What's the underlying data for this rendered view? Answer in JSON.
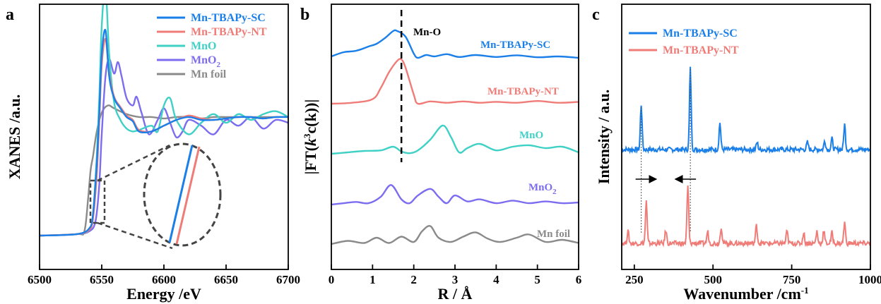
{
  "chart_data": [
    {
      "panel": "a",
      "type": "line",
      "xlabel": "Energy /eV",
      "ylabel": "XANES /a.u.",
      "xlim": [
        6500,
        6700
      ],
      "x_ticks": [
        6500,
        6550,
        6600,
        6650,
        6700
      ],
      "legend_position": "top-right",
      "inset": "zoom ellipse on edge region ~6540-6548 eV",
      "series": [
        {
          "name": "Mn-TBAPy-SC",
          "color": "#1a7fe8",
          "x": [
            6500,
            6530,
            6540,
            6543,
            6546,
            6548,
            6550,
            6553,
            6556,
            6560,
            6565,
            6570,
            6575,
            6580,
            6590,
            6600,
            6610,
            6620,
            6630,
            6640,
            6650,
            6660,
            6670,
            6680,
            6690,
            6700
          ],
          "y": [
            0.0,
            0.01,
            0.05,
            0.15,
            0.5,
            0.85,
            1.25,
            1.42,
            1.1,
            0.95,
            0.88,
            0.82,
            0.79,
            0.72,
            0.72,
            0.76,
            0.8,
            0.82,
            0.8,
            0.8,
            0.81,
            0.82,
            0.82,
            0.81,
            0.82,
            0.82
          ]
        },
        {
          "name": "Mn-TBAPy-NT",
          "color": "#f07c78",
          "x": [
            6500,
            6530,
            6540,
            6543,
            6546,
            6548,
            6550,
            6553,
            6556,
            6560,
            6565,
            6570,
            6575,
            6580,
            6590,
            6600,
            6610,
            6620,
            6630,
            6640,
            6650,
            6660,
            6670,
            6680,
            6690,
            6700
          ],
          "y": [
            0.0,
            0.01,
            0.04,
            0.12,
            0.42,
            0.78,
            1.18,
            1.36,
            1.12,
            0.96,
            0.89,
            0.83,
            0.8,
            0.73,
            0.72,
            0.76,
            0.8,
            0.83,
            0.81,
            0.8,
            0.81,
            0.82,
            0.82,
            0.81,
            0.82,
            0.82
          ]
        },
        {
          "name": "MnO",
          "color": "#3fd0c6",
          "x": [
            6500,
            6530,
            6540,
            6543,
            6546,
            6548,
            6550,
            6553,
            6556,
            6560,
            6565,
            6570,
            6575,
            6580,
            6590,
            6595,
            6600,
            6605,
            6610,
            6620,
            6630,
            6640,
            6650,
            6660,
            6670,
            6680,
            6690,
            6700
          ],
          "y": [
            0.0,
            0.01,
            0.04,
            0.15,
            0.55,
            0.95,
            1.45,
            1.72,
            1.25,
            0.92,
            0.8,
            0.74,
            0.72,
            0.73,
            0.76,
            0.72,
            0.9,
            0.95,
            0.8,
            0.7,
            0.78,
            0.84,
            0.78,
            0.84,
            0.8,
            0.84,
            0.86,
            0.82
          ]
        },
        {
          "name": "MnO2",
          "color": "#7b6cf0",
          "x": [
            6500,
            6530,
            6540,
            6545,
            6548,
            6550,
            6553,
            6556,
            6560,
            6563,
            6566,
            6570,
            6575,
            6578,
            6582,
            6588,
            6595,
            6600,
            6605,
            6610,
            6615,
            6620,
            6630,
            6640,
            6650,
            6660,
            6670,
            6680,
            6690,
            6700
          ],
          "y": [
            0.0,
            0.01,
            0.03,
            0.1,
            0.35,
            0.7,
            1.1,
            1.22,
            1.12,
            1.2,
            1.1,
            0.95,
            0.9,
            0.96,
            0.85,
            0.7,
            0.8,
            0.88,
            0.78,
            0.68,
            0.72,
            0.8,
            0.76,
            0.7,
            0.8,
            0.76,
            0.82,
            0.74,
            0.8,
            0.78
          ]
        },
        {
          "name": "Mn foil",
          "color": "#8a8a8a",
          "x": [
            6500,
            6530,
            6536,
            6539,
            6541,
            6543,
            6546,
            6550,
            6555,
            6560,
            6570,
            6580,
            6590,
            6600,
            6610,
            6620,
            6630,
            6640,
            6650,
            6660,
            6670,
            6680,
            6690,
            6700
          ],
          "y": [
            0.0,
            0.01,
            0.03,
            0.25,
            0.45,
            0.55,
            0.72,
            0.85,
            0.9,
            0.88,
            0.84,
            0.82,
            0.82,
            0.81,
            0.82,
            0.82,
            0.81,
            0.82,
            0.82,
            0.82,
            0.82,
            0.82,
            0.82,
            0.82
          ]
        }
      ]
    },
    {
      "panel": "b",
      "type": "line",
      "xlabel": "R / Å",
      "ylabel_prefix": "|FT(",
      "ylabel_k": "k",
      "ylabel_sup": "3",
      "ylabel_suffix": "c(k))|",
      "xlim": [
        0,
        6
      ],
      "x_ticks": [
        0,
        1,
        2,
        3,
        4,
        5,
        6
      ],
      "annotation": "Mn-O",
      "dashed_line_x": 1.7,
      "series": [
        {
          "name": "Mn-TBAPy-SC",
          "label": "Mn-TBAPy-SC",
          "color": "#1a7fe8",
          "label_parts": null,
          "x": [
            0,
            0.3,
            0.6,
            0.9,
            1.1,
            1.3,
            1.5,
            1.6,
            1.8,
            2.0,
            2.1,
            2.3,
            2.5,
            2.8,
            3.1,
            3.5,
            4.0,
            4.5,
            5.0,
            5.5,
            6.0
          ],
          "y": [
            0.1,
            0.25,
            0.3,
            0.45,
            0.55,
            0.75,
            1.0,
            1.0,
            0.8,
            0.2,
            0.05,
            0.15,
            0.1,
            0.18,
            0.08,
            0.15,
            0.08,
            0.14,
            0.07,
            0.1,
            0.05
          ]
        },
        {
          "name": "Mn-TBAPy-NT",
          "label": "Mn-TBAPy-NT",
          "color": "#f07c78",
          "label_parts": null,
          "x": [
            0,
            0.5,
            1.0,
            1.2,
            1.4,
            1.6,
            1.7,
            1.8,
            2.0,
            2.1,
            2.4,
            2.8,
            3.2,
            3.6,
            4.0,
            4.5,
            5.0,
            5.5,
            6.0
          ],
          "y": [
            0.0,
            0.02,
            0.1,
            0.35,
            0.7,
            0.95,
            0.98,
            0.8,
            0.2,
            0.0,
            0.05,
            0.02,
            0.05,
            0.02,
            0.04,
            0.02,
            0.06,
            0.02,
            0.04
          ]
        },
        {
          "name": "MnO",
          "label": "MnO",
          "color": "#3fd0c6",
          "label_parts": null,
          "x": [
            0,
            0.4,
            0.8,
            1.2,
            1.5,
            1.7,
            1.9,
            2.1,
            2.4,
            2.7,
            2.9,
            3.1,
            3.3,
            3.6,
            4.0,
            4.4,
            4.8,
            5.2,
            5.6,
            6.0
          ],
          "y": [
            0.0,
            0.05,
            0.1,
            0.12,
            0.25,
            0.08,
            0.02,
            0.12,
            0.5,
            1.0,
            0.6,
            0.05,
            0.2,
            0.35,
            0.12,
            0.25,
            0.3,
            0.2,
            0.25,
            0.05
          ]
        },
        {
          "name": "MnO2",
          "label": "",
          "label_parts": [
            "MnO",
            "2"
          ],
          "color": "#7b6cf0",
          "x": [
            0,
            0.3,
            0.6,
            0.9,
            1.2,
            1.45,
            1.7,
            1.9,
            2.1,
            2.4,
            2.6,
            2.8,
            3.0,
            3.3,
            3.6,
            4.0,
            4.4,
            4.8,
            5.2,
            5.6,
            6.0
          ],
          "y": [
            0.0,
            0.05,
            0.1,
            0.05,
            0.3,
            0.75,
            0.2,
            0.05,
            0.35,
            0.6,
            0.3,
            0.05,
            0.35,
            0.12,
            0.2,
            0.05,
            0.15,
            0.05,
            0.12,
            0.05,
            0.08
          ]
        },
        {
          "name": "Mn foil",
          "label": "Mn foil",
          "color": "#8a8a8a",
          "label_parts": null,
          "x": [
            0,
            0.4,
            0.8,
            1.1,
            1.4,
            1.7,
            2.0,
            2.2,
            2.4,
            2.6,
            2.9,
            3.2,
            3.5,
            3.8,
            4.1,
            4.5,
            4.8,
            5.2,
            5.6,
            6.0
          ],
          "y": [
            0.0,
            0.15,
            0.05,
            0.3,
            0.05,
            0.35,
            0.1,
            0.6,
            0.85,
            0.3,
            0.1,
            0.35,
            0.55,
            0.25,
            0.1,
            0.3,
            0.45,
            0.1,
            0.2,
            0.05
          ]
        }
      ]
    },
    {
      "panel": "c",
      "type": "line",
      "xlabel": "Wavenumber /cm",
      "xlabel_sup": "-1",
      "ylabel": "Intensity / a.u.",
      "xlim": [
        210,
        1000
      ],
      "x_ticks": [
        250,
        500,
        750,
        1000
      ],
      "legend_position": "top-left",
      "guide_lines_x": [
        272,
        428
      ],
      "shift_arrows": [
        {
          "from": 272,
          "to": 288,
          "direction": "right"
        },
        {
          "from": 428,
          "to": 412,
          "direction": "left"
        }
      ],
      "series": [
        {
          "name": "Mn-TBAPy-SC",
          "color": "#1a7fe8",
          "peaks": [
            [
              272,
              0.75
            ],
            [
              428,
              1.35
            ],
            [
              522,
              0.45
            ],
            [
              640,
              0.12
            ],
            [
              800,
              0.12
            ],
            [
              855,
              0.15
            ],
            [
              878,
              0.18
            ],
            [
              918,
              0.42
            ]
          ]
        },
        {
          "name": "Mn-TBAPy-NT",
          "color": "#f07c78",
          "peaks": [
            [
              230,
              0.2
            ],
            [
              288,
              0.7
            ],
            [
              350,
              0.22
            ],
            [
              420,
              0.95
            ],
            [
              483,
              0.2
            ],
            [
              526,
              0.28
            ],
            [
              638,
              0.3
            ],
            [
              735,
              0.2
            ],
            [
              788,
              0.18
            ],
            [
              830,
              0.2
            ],
            [
              852,
              0.22
            ],
            [
              878,
              0.18
            ],
            [
              918,
              0.35
            ]
          ]
        }
      ]
    }
  ],
  "panel_letters": {
    "a": "a",
    "b": "b",
    "c": "c"
  },
  "legend_a": [
    "Mn-TBAPy-SC",
    "Mn-TBAPy-NT",
    "MnO",
    "MnO2",
    "Mn foil"
  ],
  "legend_a_mno2_base": "MnO",
  "legend_a_mno2_sub": "2"
}
